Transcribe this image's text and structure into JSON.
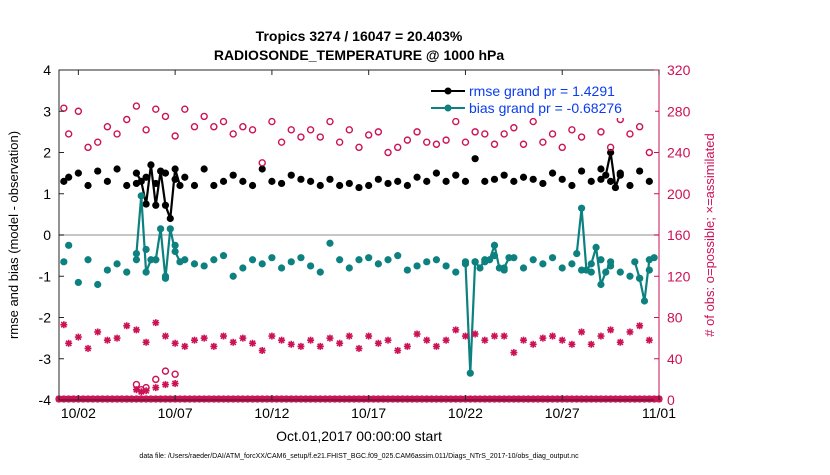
{
  "chart_data": {
    "type": "line",
    "title_line1": "Tropics 3274 / 16047 = 20.403%",
    "title_line2": "RADIOSONDE_TEMPERATURE @ 1000 hPa",
    "ylabel_left": "rmse and bias (model - observation)",
    "ylabel_right": "# of obs: o=possible; ×=assimilated",
    "xlabel": "Oct.01,2017 00:00:00 start",
    "footnote": "data file: /Users/raeder/DAI/ATM_forcXX/CAM6_setup/f.e21.FHIST_BGC.f09_025.CAM6assim.011/Diags_NTrS_2017-10/obs_diag_output.nc",
    "x_tick_labels": [
      "10/02",
      "10/07",
      "10/12",
      "10/17",
      "10/22",
      "10/27",
      "11/01"
    ],
    "x_tick_days": [
      2,
      7,
      12,
      17,
      22,
      27,
      32
    ],
    "xlim": [
      1.0,
      32.0
    ],
    "ylim_left": [
      -4,
      4
    ],
    "yticks_left": [
      -4,
      -3,
      -2,
      -1,
      0,
      1,
      2,
      3,
      4
    ],
    "ylim_right": [
      0,
      320
    ],
    "yticks_right": [
      0,
      40,
      80,
      120,
      160,
      200,
      240,
      280,
      320
    ],
    "legend": {
      "rmse": "rmse grand pr = 1.4291",
      "bias": "bias grand pr = -0.68276"
    },
    "colors": {
      "rmse": "#000000",
      "bias": "#0d8080",
      "obs": "#cc1155",
      "zero_line": "#b3b3b3",
      "legend_text": "#0a3cf0"
    },
    "series": [
      {
        "name": "rmse",
        "axis": "left",
        "style": "markers",
        "x": [
          1.25,
          1.5,
          2.0,
          2.5,
          3.0,
          3.5,
          4.0,
          4.5,
          5.0,
          5.5,
          6.0,
          6.5,
          7.0,
          7.5,
          8.0,
          8.5,
          9.0,
          9.5,
          10.0,
          10.5,
          11.0,
          11.5,
          12.0,
          12.5,
          13.0,
          13.5,
          14.0,
          14.5,
          15.0,
          15.5,
          16.0,
          16.5,
          17.0,
          17.5,
          18.0,
          18.5,
          19.0,
          19.5,
          20.0,
          20.5,
          21.0,
          21.5,
          22.0,
          22.5,
          23.0,
          23.5,
          24.0,
          24.5,
          25.0,
          25.5,
          26.0,
          26.5,
          27.0,
          27.5,
          28.0,
          28.5,
          29.0,
          29.5,
          30.0,
          30.5,
          31.0,
          31.5
        ],
        "y": [
          1.3,
          1.4,
          1.5,
          1.2,
          1.55,
          1.3,
          1.6,
          1.2,
          1.25,
          1.4,
          1.25,
          1.5,
          1.35,
          1.4,
          1.2,
          1.6,
          1.2,
          1.3,
          1.45,
          1.3,
          1.2,
          1.6,
          1.3,
          1.25,
          1.45,
          1.35,
          1.3,
          1.2,
          1.35,
          1.2,
          1.25,
          1.15,
          1.2,
          1.35,
          1.25,
          1.3,
          1.2,
          1.4,
          1.3,
          1.5,
          1.3,
          1.45,
          1.3,
          1.85,
          1.3,
          1.35,
          1.45,
          1.3,
          1.4,
          1.35,
          1.25,
          1.5,
          1.35,
          1.2,
          1.55,
          1.3,
          1.6,
          1.3,
          1.45,
          1.2,
          1.55,
          1.3
        ]
      },
      {
        "name": "rmse",
        "axis": "left",
        "style": "line",
        "x": [
          5.0,
          5.25,
          5.5,
          5.75,
          6.0,
          6.25,
          6.5,
          6.75,
          7.0,
          7.25
        ],
        "y": [
          1.5,
          1.3,
          0.75,
          1.7,
          0.72,
          1.55,
          0.72,
          0.4,
          1.6,
          1.2
        ]
      },
      {
        "name": "rmse",
        "axis": "left",
        "style": "line",
        "x": [
          29.0,
          29.25,
          29.5,
          29.75,
          30.0
        ],
        "y": [
          1.35,
          1.45,
          2.0,
          1.15,
          1.5
        ]
      },
      {
        "name": "bias",
        "axis": "left",
        "style": "markers",
        "x": [
          1.25,
          1.5,
          2.0,
          2.5,
          3.0,
          3.5,
          4.0,
          4.5,
          5.0,
          5.5,
          6.0,
          6.5,
          7.0,
          7.5,
          8.0,
          8.5,
          9.0,
          9.5,
          10.0,
          10.5,
          11.0,
          11.5,
          12.0,
          12.5,
          13.0,
          13.5,
          14.0,
          14.5,
          15.0,
          15.5,
          16.0,
          16.5,
          17.0,
          17.5,
          18.0,
          18.5,
          19.0,
          19.5,
          20.0,
          20.5,
          21.0,
          21.5,
          22.0,
          22.5,
          23.0,
          23.5,
          24.0,
          24.5,
          25.0,
          25.5,
          26.0,
          26.5,
          27.0,
          27.5,
          28.0,
          28.5,
          29.0,
          29.5,
          30.0,
          30.5,
          31.0,
          31.5
        ],
        "y": [
          -0.65,
          -0.25,
          -1.15,
          -0.6,
          -1.2,
          -0.85,
          -0.7,
          -0.9,
          -0.6,
          -0.35,
          -0.6,
          -1.0,
          -0.25,
          -0.6,
          -0.7,
          -0.75,
          -0.6,
          -0.5,
          -1.0,
          -0.8,
          -0.6,
          -0.7,
          -0.55,
          -0.8,
          -0.65,
          -0.55,
          -0.75,
          -0.9,
          -0.2,
          -0.6,
          -0.8,
          -0.6,
          -0.55,
          -0.7,
          -0.6,
          -0.5,
          -0.85,
          -0.75,
          -0.65,
          -0.6,
          -0.75,
          -0.9,
          -0.7,
          -0.65,
          -0.65,
          -0.5,
          -0.85,
          -0.55,
          -0.8,
          -0.6,
          -0.7,
          -0.55,
          -0.8,
          -0.7,
          -0.85,
          -0.9,
          -0.6,
          -0.75,
          -0.9,
          -1.0,
          -1.05,
          -0.85
        ]
      },
      {
        "name": "bias",
        "axis": "left",
        "style": "line",
        "x": [
          5.0,
          5.25,
          5.5,
          5.75,
          6.0,
          6.25,
          6.5,
          6.75,
          7.0,
          7.25
        ],
        "y": [
          -0.45,
          0.95,
          -0.9,
          -0.6,
          -0.6,
          0.15,
          -1.05,
          0.15,
          -0.4,
          -0.65
        ]
      },
      {
        "name": "bias",
        "axis": "left",
        "style": "line",
        "x": [
          22.0,
          22.25,
          22.5,
          22.75,
          23.0,
          23.25,
          23.5,
          23.75,
          24.0,
          24.25
        ],
        "y": [
          -0.65,
          -3.35,
          -0.65,
          -0.8,
          -0.6,
          -0.6,
          -0.25,
          -0.8,
          -0.8,
          -0.55
        ]
      },
      {
        "name": "bias",
        "axis": "left",
        "style": "line",
        "x": [
          27.75,
          28.0,
          28.25,
          28.5,
          28.75,
          29.0,
          29.25,
          29.5
        ],
        "y": [
          -0.45,
          0.65,
          -0.85,
          -0.7,
          -0.3,
          -1.2,
          -0.9,
          -0.65
        ]
      },
      {
        "name": "bias",
        "axis": "left",
        "style": "line",
        "x": [
          30.75,
          31.0,
          31.25,
          31.5,
          31.75
        ],
        "y": [
          -0.65,
          -1.05,
          -1.6,
          -0.6,
          -0.55
        ]
      },
      {
        "name": "obs_possible",
        "axis": "right",
        "marker": "o",
        "x": [
          1.25,
          1.5,
          2.0,
          2.5,
          3.0,
          3.5,
          4.0,
          4.5,
          5.0,
          5.5,
          6.0,
          6.5,
          7.0,
          7.5,
          8.0,
          8.5,
          9.0,
          9.5,
          10.0,
          10.5,
          11.0,
          11.5,
          12.0,
          12.5,
          13.0,
          13.5,
          14.0,
          14.5,
          15.0,
          15.5,
          16.0,
          16.5,
          17.0,
          17.5,
          18.0,
          18.5,
          19.0,
          19.5,
          20.0,
          20.5,
          21.0,
          21.5,
          22.0,
          22.5,
          23.0,
          23.5,
          24.0,
          24.5,
          25.0,
          25.5,
          26.0,
          26.5,
          27.0,
          27.5,
          28.0,
          28.5,
          29.0,
          29.5,
          30.0,
          30.5,
          31.0,
          31.5
        ],
        "y": [
          283,
          258,
          280,
          245,
          250,
          265,
          258,
          272,
          285,
          262,
          282,
          275,
          256,
          282,
          265,
          275,
          265,
          270,
          258,
          265,
          262,
          230,
          270,
          250,
          262,
          255,
          262,
          255,
          270,
          250,
          262,
          245,
          257,
          260,
          240,
          245,
          252,
          260,
          250,
          248,
          252,
          270,
          250,
          260,
          258,
          248,
          258,
          264,
          248,
          270,
          250,
          258,
          245,
          262,
          255,
          278,
          260,
          245,
          272,
          258,
          265,
          240
        ]
      },
      {
        "name": "obs_assimilated",
        "axis": "right",
        "marker": "x",
        "x": [
          1.25,
          1.5,
          2.0,
          2.5,
          3.0,
          3.5,
          4.0,
          4.5,
          5.0,
          5.5,
          6.0,
          6.5,
          7.0,
          7.5,
          8.0,
          8.5,
          9.0,
          9.5,
          10.0,
          10.5,
          11.0,
          11.5,
          12.0,
          12.5,
          13.0,
          13.5,
          14.0,
          14.5,
          15.0,
          15.5,
          16.0,
          16.5,
          17.0,
          17.5,
          18.0,
          18.5,
          19.0,
          19.5,
          20.0,
          20.5,
          21.0,
          21.5,
          22.0,
          22.5,
          23.0,
          23.5,
          24.0,
          24.5,
          25.0,
          25.5,
          26.0,
          26.5,
          27.0,
          27.5,
          28.0,
          28.5,
          29.0,
          29.5,
          30.0,
          30.5,
          31.0,
          31.5
        ],
        "y": [
          73,
          55,
          61,
          50,
          66,
          58,
          60,
          72,
          68,
          56,
          75,
          62,
          55,
          52,
          58,
          60,
          52,
          62,
          56,
          60,
          55,
          48,
          62,
          58,
          54,
          52,
          58,
          52,
          60,
          55,
          62,
          50,
          62,
          55,
          58,
          48,
          52,
          64,
          58,
          52,
          58,
          68,
          62,
          64,
          58,
          62,
          62,
          46,
          58,
          54,
          60,
          62,
          58,
          54,
          66,
          54,
          62,
          68,
          56,
          66,
          72,
          58
        ]
      }
    ],
    "extra_points": {
      "obs_possible_low": {
        "x": [
          5.0,
          5.25,
          5.5,
          6.0,
          6.5,
          7.0
        ],
        "y": [
          15,
          10,
          12,
          20,
          28,
          25
        ]
      },
      "obs_assimilated_low": {
        "x": [
          5.0,
          5.25,
          5.5,
          6.0,
          6.5,
          7.0
        ],
        "y": [
          10,
          8,
          9,
          12,
          15,
          16
        ]
      },
      "zero_count": {
        "x_start": 1.0,
        "x_end": 32.0,
        "step": 0.25,
        "y": 0
      }
    }
  }
}
